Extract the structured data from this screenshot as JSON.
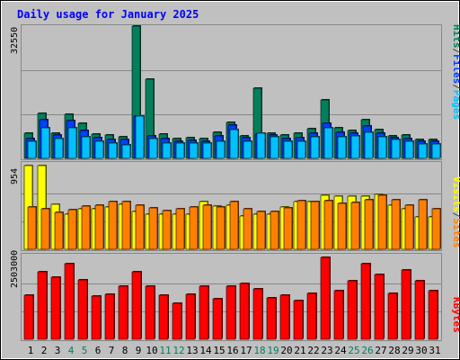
{
  "chart_data": [
    {
      "type": "bar",
      "title": "Daily usage for January 2025",
      "scale_label": "32550",
      "ymax": 32550,
      "categories": [
        "1",
        "2",
        "3",
        "4",
        "5",
        "6",
        "7",
        "8",
        "9",
        "10",
        "11",
        "12",
        "13",
        "14",
        "15",
        "16",
        "17",
        "18",
        "19",
        "20",
        "21",
        "22",
        "23",
        "24",
        "25",
        "26",
        "27",
        "28",
        "29",
        "30",
        "31"
      ],
      "weekend_days": [
        "4",
        "5",
        "11",
        "12",
        "18",
        "19",
        "25",
        "26"
      ],
      "series_labels": [
        {
          "text": "Hits",
          "color": "#00805c"
        },
        {
          "text": "/",
          "color": "#444444"
        },
        {
          "text": "Files",
          "color": "#0040ff"
        },
        {
          "text": "/",
          "color": "#444444"
        },
        {
          "text": "Pages",
          "color": "#00c0ff"
        }
      ],
      "series": [
        {
          "name": "Hits",
          "color": "#00805c",
          "values": [
            6240,
            11100,
            6240,
            10800,
            8700,
            5880,
            5700,
            5340,
            32550,
            19440,
            5880,
            4900,
            5000,
            4880,
            6510,
            8880,
            5500,
            17200,
            6120,
            5700,
            6240,
            7320,
            14500,
            7590,
            6900,
            9500,
            7110,
            5460,
            5700,
            4760,
            4760
          ]
        },
        {
          "name": "Files",
          "color": "#0040ff",
          "values": [
            4880,
            9500,
            5800,
            9210,
            6800,
            5020,
            4690,
            4690,
            10440,
            5500,
            4880,
            4200,
            4500,
            4200,
            5560,
            8150,
            5020,
            6000,
            5760,
            4880,
            5200,
            6240,
            8700,
            6510,
            6240,
            8000,
            6240,
            5020,
            4880,
            4200,
            4200
          ]
        },
        {
          "name": "Pages",
          "color": "#00c0ff",
          "values": [
            4200,
            7590,
            4880,
            7590,
            5340,
            4200,
            3710,
            3240,
            10440,
            4880,
            3710,
            3710,
            3710,
            3710,
            4200,
            7110,
            4200,
            6240,
            5340,
            4200,
            4200,
            5340,
            7590,
            5340,
            5460,
            6510,
            5340,
            4650,
            4200,
            3550,
            3550
          ]
        }
      ]
    },
    {
      "type": "bar",
      "title": "",
      "scale_label": "954",
      "ymax": 954,
      "categories": [
        "1",
        "2",
        "3",
        "4",
        "5",
        "6",
        "7",
        "8",
        "9",
        "10",
        "11",
        "12",
        "13",
        "14",
        "15",
        "16",
        "17",
        "18",
        "19",
        "20",
        "21",
        "22",
        "23",
        "24",
        "25",
        "26",
        "27",
        "28",
        "29",
        "30",
        "31"
      ],
      "series_labels": [
        {
          "text": "Visits",
          "color": "#ffff00"
        },
        {
          "text": "/",
          "color": "#444444"
        },
        {
          "text": "Sites",
          "color": "#ff8000"
        }
      ],
      "series": [
        {
          "name": "Visits",
          "color": "#ffff00",
          "values": [
            954,
            954,
            513,
            405,
            459,
            459,
            477,
            513,
            432,
            405,
            396,
            405,
            405,
            540,
            495,
            504,
            378,
            405,
            405,
            477,
            540,
            540,
            612,
            604,
            604,
            603,
            630,
            504,
            459,
            369,
            369
          ]
        },
        {
          "name": "Sites",
          "color": "#ff8000",
          "values": [
            486,
            459,
            423,
            450,
            495,
            504,
            540,
            540,
            504,
            468,
            441,
            459,
            477,
            504,
            486,
            540,
            459,
            432,
            432,
            468,
            558,
            540,
            549,
            522,
            531,
            567,
            612,
            567,
            504,
            567,
            459
          ]
        }
      ]
    },
    {
      "type": "bar",
      "title": "",
      "scale_label": "2503000",
      "ymax": 2503000,
      "categories": [
        "1",
        "2",
        "3",
        "4",
        "5",
        "6",
        "7",
        "8",
        "9",
        "10",
        "11",
        "12",
        "13",
        "14",
        "15",
        "16",
        "17",
        "18",
        "19",
        "20",
        "21",
        "22",
        "23",
        "24",
        "25",
        "26",
        "27",
        "28",
        "29",
        "30",
        "31"
      ],
      "series_labels": [
        {
          "text": "KBytes",
          "color": "#ff0000"
        }
      ],
      "series": [
        {
          "name": "KBytes",
          "color": "#ff0000",
          "values": [
            1310000,
            2030000,
            1870000,
            2250000,
            1770000,
            1300000,
            1340000,
            1590000,
            2030000,
            1590000,
            1330000,
            1070000,
            1340000,
            1580000,
            1220000,
            1580000,
            1680000,
            1500000,
            1230000,
            1330000,
            1160000,
            1380000,
            2450000,
            1460000,
            1740000,
            2250000,
            1940000,
            1380000,
            2060000,
            1740000,
            1460000
          ]
        }
      ]
    }
  ]
}
